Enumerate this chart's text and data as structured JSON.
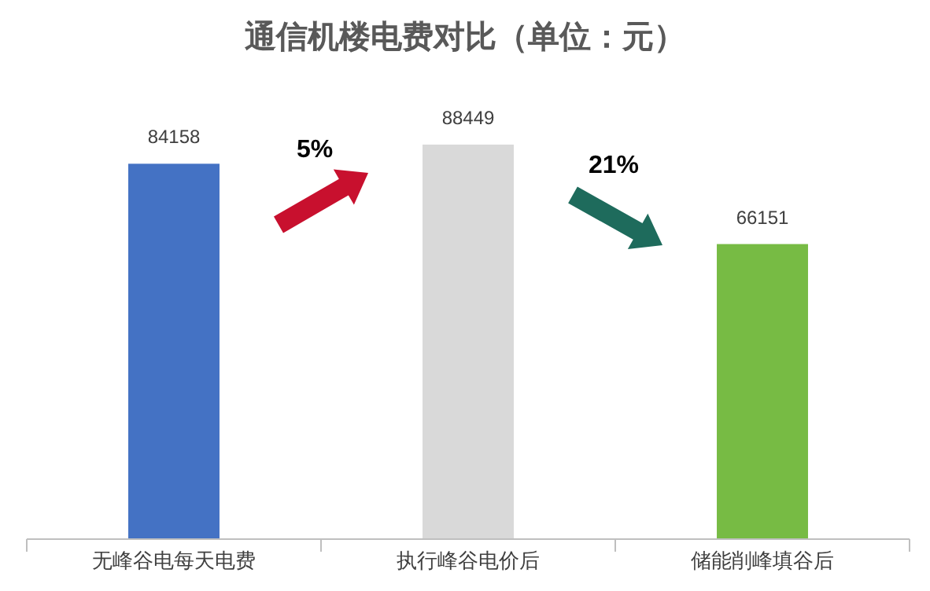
{
  "chart_data": {
    "type": "bar",
    "title": "通信机楼电费对比（单位：元）",
    "categories": [
      "无峰谷电每天电费",
      "执行峰谷电价后",
      "储能削峰填谷后"
    ],
    "values": [
      84158,
      88449,
      66151
    ],
    "colors": [
      "#4472c4",
      "#d9d9d9",
      "#77bb44"
    ],
    "data_labels": true,
    "annotations": [
      "5%",
      "21%"
    ]
  }
}
